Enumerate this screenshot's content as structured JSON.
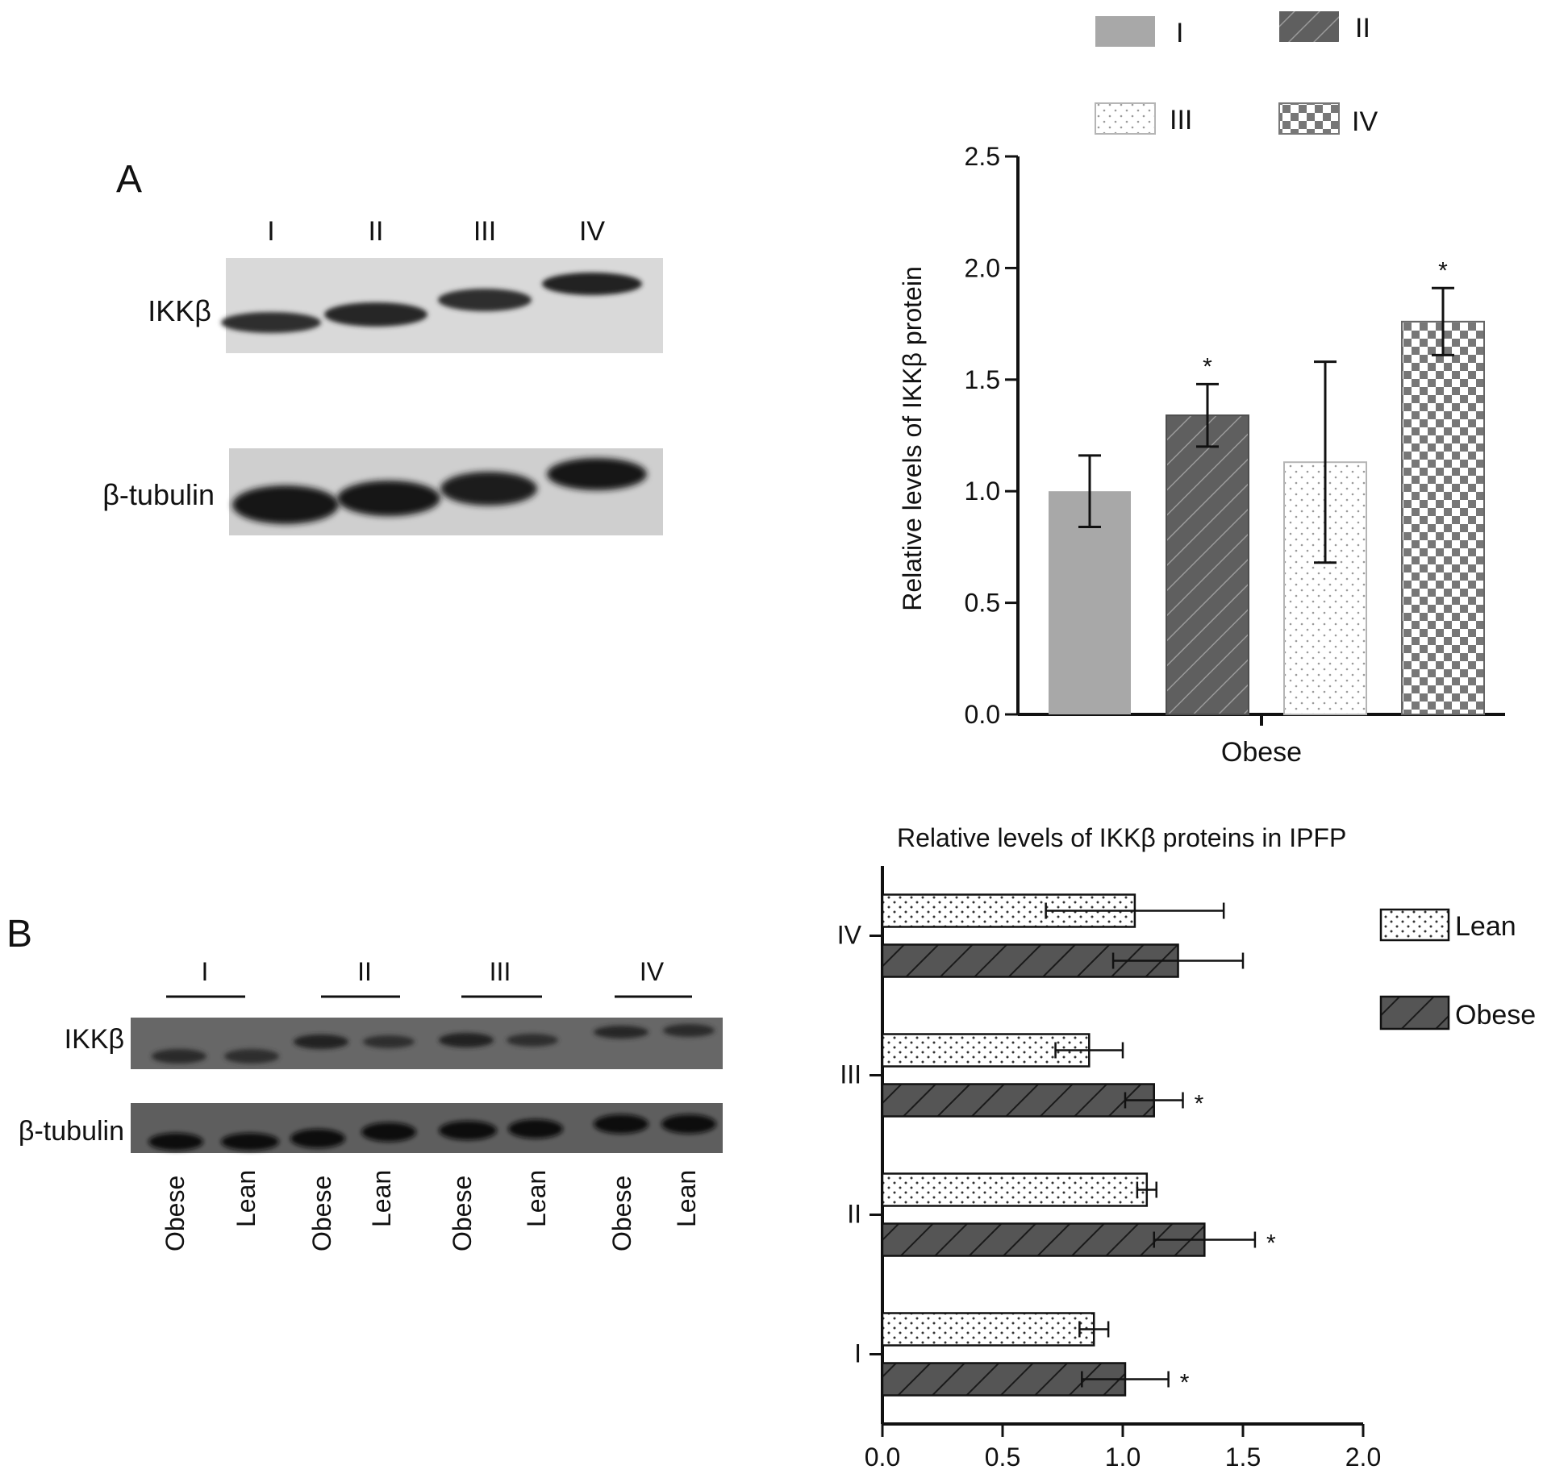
{
  "panels": {
    "a": {
      "label": "A"
    },
    "b": {
      "label": "B"
    }
  },
  "blot_a": {
    "lanes": [
      "I",
      "II",
      "III",
      "IV"
    ],
    "rows": [
      "IKKβ",
      "β-tubulin"
    ]
  },
  "blot_b": {
    "groups": [
      "I",
      "II",
      "III",
      "IV"
    ],
    "rows": [
      "IKKβ",
      "β-tubulin"
    ],
    "lane_labels": [
      "Obese",
      "Lean",
      "Obese",
      "Lean",
      "Obese",
      "Lean",
      "Obese",
      "Lean"
    ]
  },
  "colors": {
    "group_I": "#a8a8a8",
    "group_II": "#5f5f5f",
    "group_III": "#ffffff",
    "group_IV": "#777777",
    "lean": "#ffffff",
    "obese": "#555555"
  },
  "chart_data": [
    {
      "type": "bar",
      "title": "",
      "xlabel": "Obese",
      "ylabel": "Relative levels of IKKβ protein",
      "ylim": [
        0,
        2.5
      ],
      "yticks": [
        "0.0",
        "0.5",
        "1.0",
        "1.5",
        "2.0",
        "2.5"
      ],
      "legend": {
        "placement": "top-right",
        "entries": [
          "I",
          "II",
          "III",
          "IV"
        ]
      },
      "series": [
        {
          "name": "I",
          "value": 1.0,
          "error": 0.16,
          "significant": false,
          "pattern": "solid-gray"
        },
        {
          "name": "II",
          "value": 1.34,
          "error": 0.14,
          "significant": true,
          "pattern": "hatched-dark"
        },
        {
          "name": "III",
          "value": 1.13,
          "error": 0.45,
          "significant": false,
          "pattern": "dotted-white"
        },
        {
          "name": "IV",
          "value": 1.76,
          "error": 0.15,
          "significant": true,
          "pattern": "checkered"
        }
      ],
      "significance_marker": "*"
    },
    {
      "type": "bar",
      "orientation": "horizontal",
      "title": "Relative levels of IKKβ proteins in IPFP",
      "xlim": [
        0,
        2.0
      ],
      "xticks": [
        "0.0",
        "0.5",
        "1.0",
        "1.5",
        "2.0"
      ],
      "categories": [
        "IV",
        "III",
        "II",
        "I"
      ],
      "legend": {
        "placement": "right",
        "entries": [
          "Lean",
          "Obese"
        ]
      },
      "series": [
        {
          "name": "Lean",
          "values": [
            1.05,
            0.86,
            1.1,
            0.88
          ],
          "errors": [
            0.37,
            0.14,
            0.04,
            0.06
          ],
          "significant": [
            false,
            false,
            false,
            false
          ]
        },
        {
          "name": "Obese",
          "values": [
            1.23,
            1.13,
            1.34,
            1.01
          ],
          "errors": [
            0.27,
            0.12,
            0.21,
            0.18
          ],
          "significant": [
            false,
            true,
            true,
            true
          ]
        }
      ],
      "significance_marker": "*"
    }
  ]
}
